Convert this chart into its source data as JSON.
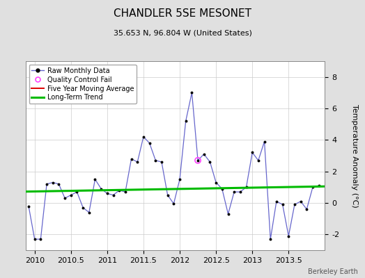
{
  "title": "CHANDLER 5SE MESONET",
  "subtitle": "35.653 N, 96.804 W (United States)",
  "ylabel": "Temperature Anomaly (°C)",
  "watermark": "Berkeley Earth",
  "xlim": [
    2009.875,
    2014.0
  ],
  "ylim": [
    -3.0,
    9.0
  ],
  "xticks": [
    2010,
    2010.5,
    2011,
    2011.5,
    2012,
    2012.5,
    2013,
    2013.5
  ],
  "yticks": [
    -2,
    0,
    2,
    4,
    6,
    8
  ],
  "bg_color": "#e0e0e0",
  "plot_bg_color": "#ffffff",
  "raw_x": [
    2009.917,
    2010.0,
    2010.083,
    2010.167,
    2010.25,
    2010.333,
    2010.417,
    2010.5,
    2010.583,
    2010.667,
    2010.75,
    2010.833,
    2010.917,
    2011.0,
    2011.083,
    2011.167,
    2011.25,
    2011.333,
    2011.417,
    2011.5,
    2011.583,
    2011.667,
    2011.75,
    2011.833,
    2011.917,
    2012.0,
    2012.083,
    2012.167,
    2012.25,
    2012.333,
    2012.417,
    2012.5,
    2012.583,
    2012.667,
    2012.75,
    2012.833,
    2012.917,
    2013.0,
    2013.083,
    2013.167,
    2013.25,
    2013.333,
    2013.417,
    2013.5,
    2013.583,
    2013.667,
    2013.75,
    2013.833,
    2013.917
  ],
  "raw_y": [
    -0.2,
    -2.3,
    -2.3,
    1.2,
    1.3,
    1.2,
    0.3,
    0.5,
    0.7,
    -0.3,
    -0.6,
    1.5,
    0.9,
    0.6,
    0.5,
    0.8,
    0.7,
    2.8,
    2.6,
    4.2,
    3.8,
    2.7,
    2.6,
    0.5,
    -0.05,
    1.5,
    5.2,
    7.0,
    2.7,
    3.1,
    2.6,
    1.3,
    0.9,
    -0.7,
    0.7,
    0.7,
    1.0,
    3.2,
    2.7,
    3.9,
    -2.3,
    0.1,
    -0.1,
    -2.1,
    -0.1,
    0.1,
    -0.4,
    1.0,
    1.1
  ],
  "qc_x": [
    2012.25
  ],
  "qc_y": [
    2.7
  ],
  "trend_x": [
    2009.875,
    2014.0
  ],
  "trend_y": [
    0.72,
    1.05
  ],
  "raw_line_color": "#6666cc",
  "raw_marker_color": "#000000",
  "trend_color": "#00bb00",
  "qc_color": "#ff44ff",
  "ma_color": "#dd0000",
  "grid_color": "#cccccc",
  "title_fontsize": 11,
  "subtitle_fontsize": 8,
  "tick_fontsize": 8,
  "ylabel_fontsize": 8,
  "legend_fontsize": 7,
  "watermark_fontsize": 7
}
